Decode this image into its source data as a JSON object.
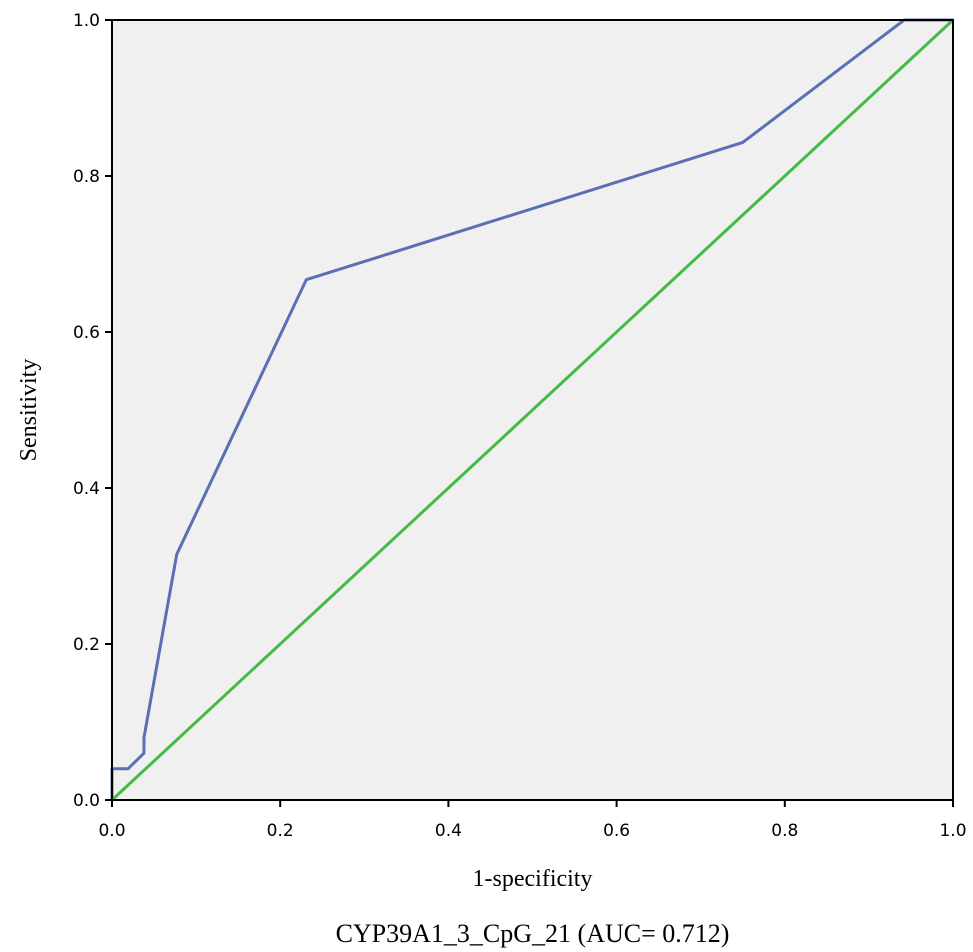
{
  "chart_data": {
    "type": "line",
    "xlabel": "1-specificity",
    "ylabel": "Sensitivity",
    "caption": "CYP39A1_3_CpG_21 (AUC= 0.712)",
    "xlim": [
      0,
      1
    ],
    "ylim": [
      0,
      1
    ],
    "x_ticks": [
      "0.0",
      "0.2",
      "0.4",
      "0.6",
      "0.8",
      "1.0"
    ],
    "y_ticks": [
      "0.0",
      "0.2",
      "0.4",
      "0.6",
      "0.8",
      "1.0"
    ],
    "grid": false,
    "plot_background": "#f0f0f0",
    "series": [
      {
        "role": "roc-curve",
        "color": "#5b6fb5",
        "points": [
          [
            0.0,
            0.0
          ],
          [
            0.0,
            0.04
          ],
          [
            0.019,
            0.04
          ],
          [
            0.038,
            0.06
          ],
          [
            0.038,
            0.08
          ],
          [
            0.077,
            0.315
          ],
          [
            0.231,
            0.667
          ],
          [
            0.75,
            0.843
          ],
          [
            0.942,
            1.0
          ],
          [
            1.0,
            1.0
          ]
        ]
      },
      {
        "role": "reference-line",
        "color": "#44bb44",
        "points": [
          [
            0.0,
            0.0
          ],
          [
            1.0,
            1.0
          ]
        ]
      }
    ]
  }
}
